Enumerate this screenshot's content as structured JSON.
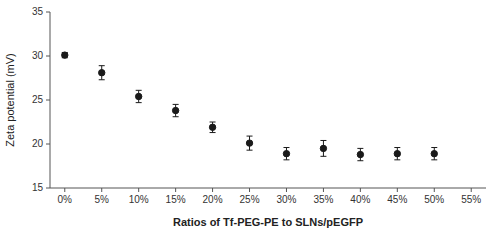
{
  "chart_data": {
    "type": "scatter",
    "xlabel": "Ratios of Tf-PEG-PE to SLNs/pEGFP",
    "ylabel": "Zeta potential (mV)",
    "x": [
      0,
      5,
      10,
      15,
      20,
      25,
      30,
      35,
      40,
      45,
      50
    ],
    "values": [
      30.1,
      28.1,
      25.4,
      23.8,
      21.9,
      20.1,
      18.9,
      19.5,
      18.8,
      18.9,
      18.9
    ],
    "errors": [
      0.3,
      0.8,
      0.7,
      0.7,
      0.6,
      0.8,
      0.7,
      0.9,
      0.7,
      0.7,
      0.7
    ],
    "color": "#1a1a1a",
    "marker": "circle",
    "xlim": [
      -2,
      57
    ],
    "ylim": [
      15,
      35
    ],
    "xticks": [
      {
        "value": 0,
        "label": "0%"
      },
      {
        "value": 5,
        "label": "5%"
      },
      {
        "value": 10,
        "label": "10%"
      },
      {
        "value": 15,
        "label": "15%"
      },
      {
        "value": 20,
        "label": "20%"
      },
      {
        "value": 25,
        "label": "25%"
      },
      {
        "value": 30,
        "label": "30%"
      },
      {
        "value": 35,
        "label": "35%"
      },
      {
        "value": 40,
        "label": "40%"
      },
      {
        "value": 45,
        "label": "45%"
      },
      {
        "value": 50,
        "label": "50%"
      },
      {
        "value": 55,
        "label": "55%"
      }
    ],
    "yticks": [
      15,
      20,
      25,
      30,
      35
    ]
  }
}
